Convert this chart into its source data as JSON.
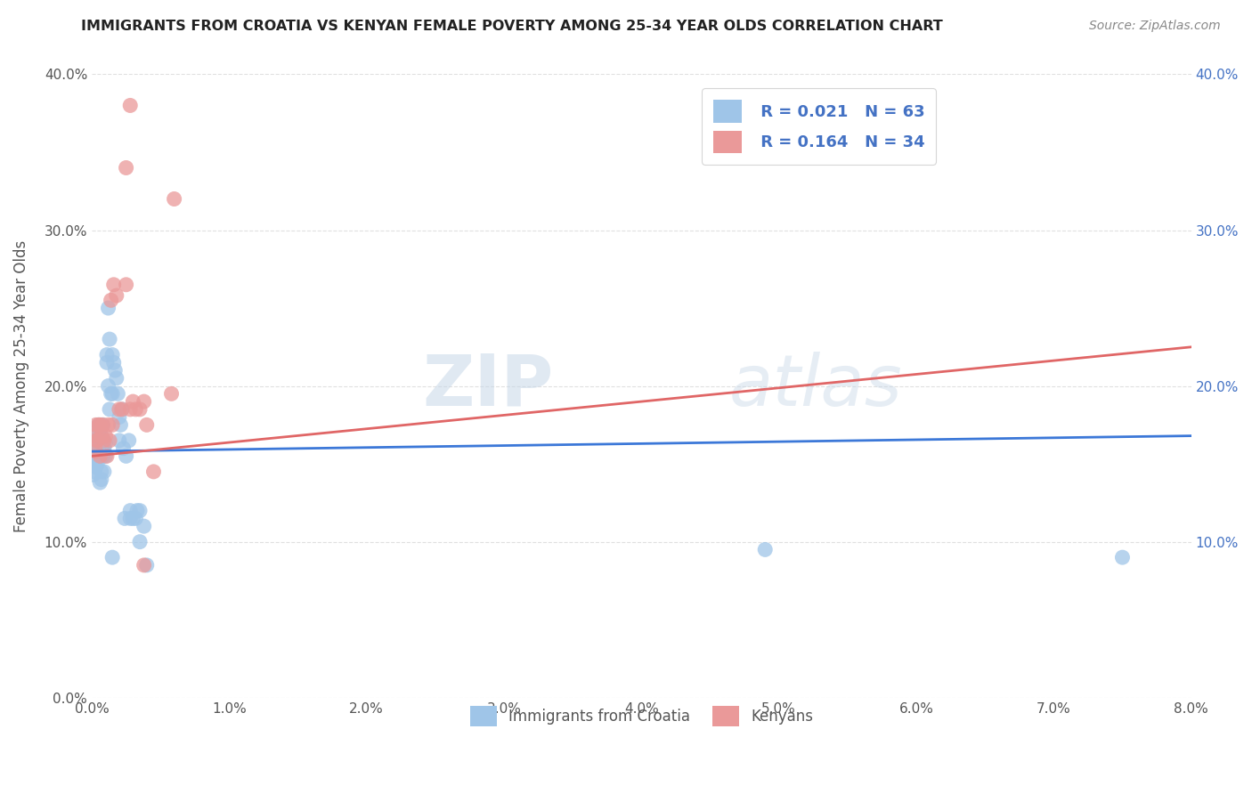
{
  "title": "IMMIGRANTS FROM CROATIA VS KENYAN FEMALE POVERTY AMONG 25-34 YEAR OLDS CORRELATION CHART",
  "source": "Source: ZipAtlas.com",
  "ylabel_label": "Female Poverty Among 25-34 Year Olds",
  "legend_labels": [
    "Immigrants from Croatia",
    "Kenyans"
  ],
  "r_blue": "0.021",
  "n_blue": "63",
  "r_pink": "0.164",
  "n_pink": "34",
  "color_blue": "#9fc5e8",
  "color_pink": "#ea9999",
  "color_blue_line": "#3c78d8",
  "color_pink_line": "#e06666",
  "color_legend_text": "#4472c4",
  "watermark_part1": "ZIP",
  "watermark_part2": "atlas",
  "xlim": [
    0.0,
    0.08
  ],
  "ylim": [
    0.0,
    0.4
  ],
  "blue_points_x": [
    0.0002,
    0.0003,
    0.0001,
    0.0002,
    0.0004,
    0.0003,
    0.0002,
    0.0001,
    0.0003,
    0.0004,
    0.0005,
    0.0003,
    0.0004,
    0.0005,
    0.0004,
    0.0006,
    0.0005,
    0.0006,
    0.0007,
    0.0006,
    0.0007,
    0.0008,
    0.0007,
    0.0008,
    0.0009,
    0.0008,
    0.0009,
    0.001,
    0.0009,
    0.001,
    0.0011,
    0.0012,
    0.0011,
    0.0013,
    0.0012,
    0.0014,
    0.0013,
    0.0015,
    0.0016,
    0.0015,
    0.0017,
    0.0018,
    0.0019,
    0.002,
    0.0021,
    0.0022,
    0.002,
    0.0023,
    0.0025,
    0.0027,
    0.0024,
    0.0028,
    0.003,
    0.0032,
    0.0035,
    0.0038,
    0.004,
    0.0028,
    0.0033,
    0.0015,
    0.049,
    0.0035,
    0.075
  ],
  "blue_points_y": [
    0.17,
    0.163,
    0.158,
    0.155,
    0.15,
    0.148,
    0.145,
    0.143,
    0.152,
    0.16,
    0.155,
    0.165,
    0.158,
    0.162,
    0.155,
    0.168,
    0.175,
    0.155,
    0.145,
    0.138,
    0.14,
    0.175,
    0.168,
    0.155,
    0.16,
    0.162,
    0.145,
    0.163,
    0.158,
    0.155,
    0.22,
    0.25,
    0.215,
    0.23,
    0.2,
    0.195,
    0.185,
    0.22,
    0.215,
    0.195,
    0.21,
    0.205,
    0.195,
    0.18,
    0.175,
    0.185,
    0.165,
    0.16,
    0.155,
    0.165,
    0.115,
    0.115,
    0.115,
    0.115,
    0.1,
    0.11,
    0.085,
    0.12,
    0.12,
    0.09,
    0.095,
    0.12,
    0.09
  ],
  "pink_points_x": [
    0.0002,
    0.0003,
    0.0004,
    0.0003,
    0.0005,
    0.0004,
    0.0006,
    0.0007,
    0.0006,
    0.0008,
    0.0009,
    0.001,
    0.0012,
    0.0011,
    0.0013,
    0.0015,
    0.0014,
    0.0016,
    0.0018,
    0.002,
    0.0022,
    0.0025,
    0.0028,
    0.003,
    0.0032,
    0.0035,
    0.0038,
    0.004,
    0.0045,
    0.0028,
    0.0038,
    0.0058,
    0.006,
    0.0025
  ],
  "pink_points_y": [
    0.168,
    0.175,
    0.165,
    0.158,
    0.175,
    0.165,
    0.175,
    0.168,
    0.155,
    0.175,
    0.165,
    0.168,
    0.175,
    0.155,
    0.165,
    0.175,
    0.255,
    0.265,
    0.258,
    0.185,
    0.185,
    0.265,
    0.185,
    0.19,
    0.185,
    0.185,
    0.19,
    0.175,
    0.145,
    0.38,
    0.085,
    0.195,
    0.32,
    0.34
  ],
  "blue_line_x": [
    0.0,
    0.08
  ],
  "blue_line_y": [
    0.158,
    0.168
  ],
  "pink_line_x": [
    0.0,
    0.08
  ],
  "pink_line_y": [
    0.155,
    0.225
  ],
  "background_color": "#ffffff",
  "grid_color": "#dddddd"
}
